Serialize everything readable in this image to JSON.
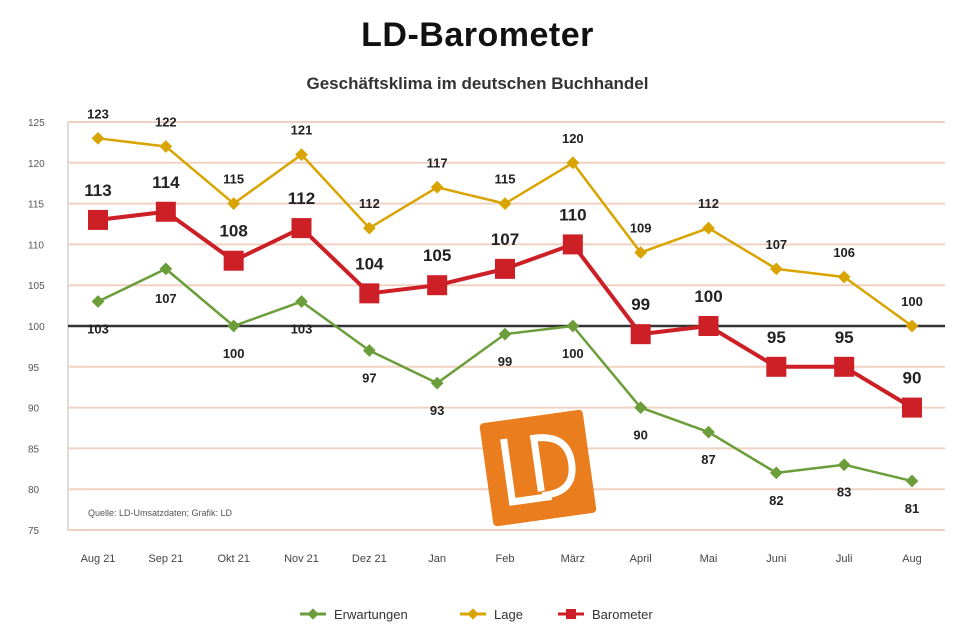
{
  "title": "LD-Barometer",
  "subtitle": "Geschäftsklima im deutschen Buchhandel",
  "source_note": "Quelle: LD-Umsatzdaten; Grafik: LD",
  "logo_text": "LD",
  "colors": {
    "Erwartungen": "#6b9e3a",
    "Lage": "#d9a400",
    "Barometer": "#cc1f26",
    "grid": "#f1d2c2",
    "baseline": "#333333",
    "logo": "#e8730c"
  },
  "chart_data": {
    "type": "line",
    "title": "LD-Barometer",
    "subtitle": "Geschäftsklima im deutschen Buchhandel",
    "categories": [
      "Aug 21",
      "Sep 21",
      "Okt 21",
      "Nov 21",
      "Dez 21",
      "Jan",
      "Feb",
      "März",
      "April",
      "Mai",
      "Juni",
      "Juli",
      "Aug"
    ],
    "ylim": [
      75,
      125
    ],
    "yticks": [
      75,
      80,
      85,
      90,
      95,
      100,
      105,
      110,
      115,
      120,
      125
    ],
    "baseline": 100,
    "grid": true,
    "legend_position": "bottom",
    "series": [
      {
        "name": "Erwartungen",
        "values": [
          103,
          107,
          100,
          103,
          97,
          93,
          99,
          100,
          90,
          87,
          82,
          83,
          81
        ]
      },
      {
        "name": "Lage",
        "values": [
          123,
          122,
          115,
          121,
          112,
          117,
          115,
          120,
          109,
          112,
          107,
          106,
          100
        ]
      },
      {
        "name": "Barometer",
        "values": [
          113,
          114,
          108,
          112,
          104,
          105,
          107,
          110,
          99,
          100,
          95,
          95,
          90
        ]
      }
    ]
  }
}
